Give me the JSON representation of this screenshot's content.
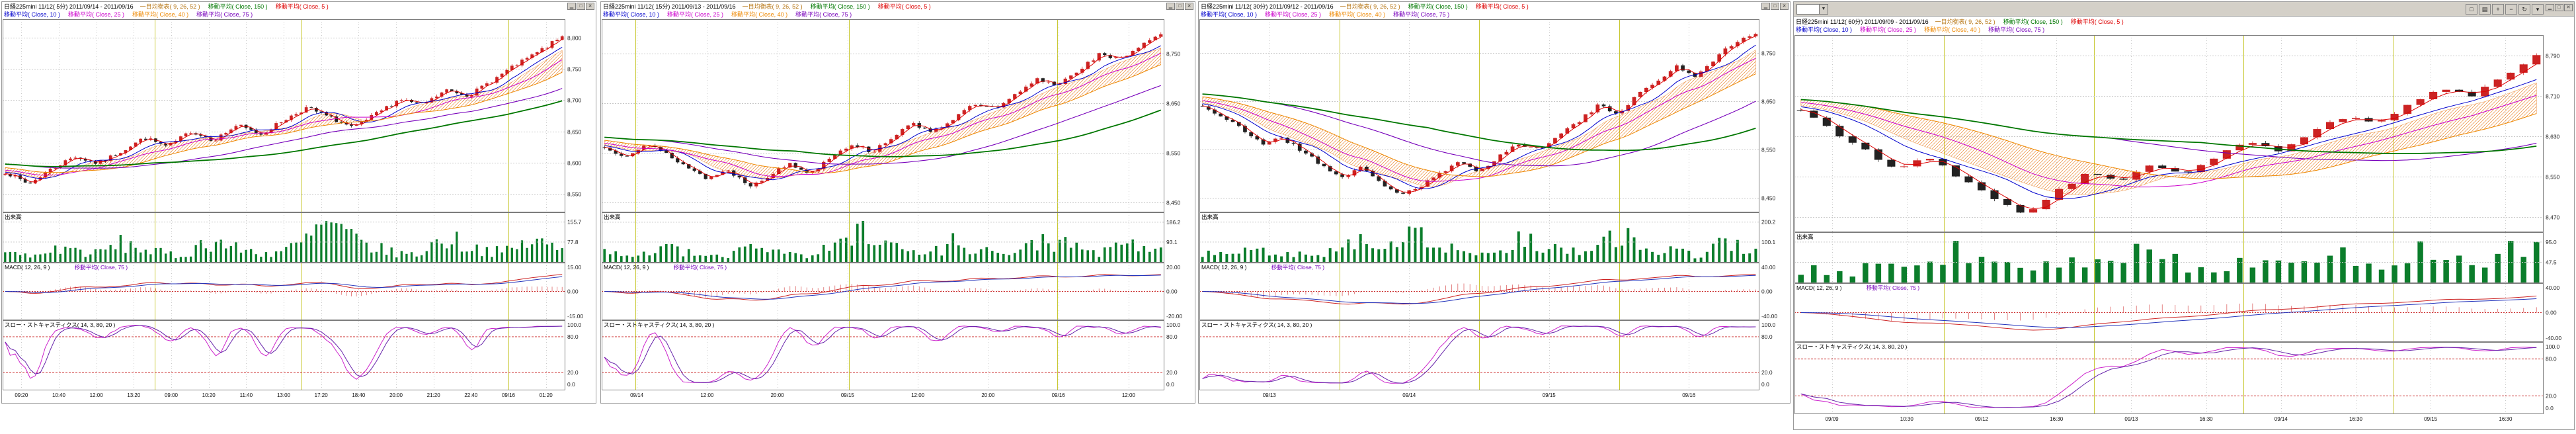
{
  "app": {
    "background": "#ffffff"
  },
  "colors": {
    "panel_chrome": "#d4d0c8",
    "candle_up": "#cc2222",
    "candle_down": "#222222",
    "volume_bar": "#0b7d2b",
    "grid": "#c9c9c9",
    "axis_text": "#222222",
    "border": "#7d7d7d",
    "cloud": "#e87818",
    "session": "#c8c832",
    "ma5": "#dd0000",
    "ma10": "#0000cc",
    "ma25": "#cc00cc",
    "ma40": "#ee8800",
    "ma75": "#7700bb",
    "ma150": "#007700",
    "macd_line": "#cc2222",
    "macd_signal": "#2233bb",
    "macd_hist": "#dd6666",
    "stoch_k": "#cc22cc",
    "stoch_d": "#6622aa",
    "guide": "#cc3333"
  },
  "window_controls": {
    "minimize": "▁",
    "maximize": "□",
    "close": "✕"
  },
  "panels": [
    {
      "title": "日経225mini 11/12( 5分)  2011/09/14 - 2011/09/16",
      "indicators_row1": [
        {
          "label": "一目均衡表( 9, 26, 52 )",
          "color": "#b87818"
        },
        {
          "label": "移動平均( Close, 150 )",
          "color": "#007700"
        },
        {
          "label": "移動平均( Close, 5 )",
          "color": "#dd0000"
        }
      ],
      "indicators_row2": [
        {
          "label": "移動平均( Close, 10 )",
          "color": "#0000cc"
        },
        {
          "label": "移動平均( Close, 25 )",
          "color": "#cc00cc"
        },
        {
          "label": "移動平均( Close, 40 )",
          "color": "#ee8800"
        },
        {
          "label": "移動平均( Close, 75 )",
          "color": "#7700bb"
        }
      ],
      "volume_label": "出来高",
      "macd_labels": [
        {
          "label": "MACD( 12, 26, 9 )",
          "color": "#000000"
        },
        {
          "label": "移動平均( Close, 75 )",
          "color": "#7700bb"
        }
      ],
      "stoch_label": "スロー・ストキャスティクス( 14, 3, 80, 20 )",
      "chart_data": {
        "type": "candlestick",
        "timeframe": "5分",
        "price_ticks": [
          {
            "label": "8,800",
            "value": 8800
          },
          {
            "label": "8,750",
            "value": 8750
          },
          {
            "label": "8,700",
            "value": 8700
          },
          {
            "label": "8,650",
            "value": 8650
          },
          {
            "label": "8,600",
            "value": 8600
          },
          {
            "label": "8,550",
            "value": 8550
          }
        ],
        "price_range": [
          8520,
          8830
        ],
        "volume_ticks": [
          {
            "label": "155.7",
            "value": 155.7
          },
          {
            "label": "77.8",
            "value": 77.8
          }
        ],
        "volume_max": 160,
        "macd_ticks": [
          "15.00",
          "0.00",
          "-15.00"
        ],
        "stoch_ticks": [
          {
            "label": "100.0",
            "value": 100
          },
          {
            "label": "80.0",
            "value": 80
          },
          {
            "label": "20.0",
            "value": 20
          },
          {
            "label": "0.0",
            "value": 0
          }
        ],
        "x_labels": [
          "09:20",
          "10:40",
          "12:00",
          "13:20",
          "09:00",
          "10:20",
          "11:40",
          "13:00",
          "17:20",
          "18:40",
          "20:00",
          "21:20",
          "22:40",
          "09/16",
          "01:20"
        ],
        "session_breaks": [
          0.27,
          0.53,
          0.9
        ],
        "candle_count": 112,
        "seed": 7,
        "pre_trend": 0.8,
        "close_anchors": [
          8585,
          8565,
          8590,
          8610,
          8598,
          8618,
          8640,
          8625,
          8650,
          8636,
          8660,
          8645,
          8668,
          8688,
          8672,
          8655,
          8678,
          8702,
          8692,
          8716,
          8708,
          8732,
          8756,
          8778,
          8802
        ],
        "volume_anchors": [
          38,
          22,
          58,
          30,
          72,
          42,
          20,
          88,
          48,
          32,
          62,
          148,
          78,
          42,
          26,
          96,
          56,
          36,
          82,
          48
        ]
      }
    },
    {
      "title": "日経225mini 11/12( 15分)  2011/09/13 - 2011/09/16",
      "indicators_row1": [
        {
          "label": "一目均衡表( 9, 26, 52 )",
          "color": "#b87818"
        },
        {
          "label": "移動平均( Close, 150 )",
          "color": "#007700"
        },
        {
          "label": "移動平均( Close, 5 )",
          "color": "#dd0000"
        }
      ],
      "indicators_row2": [
        {
          "label": "移動平均( Close, 10 )",
          "color": "#0000cc"
        },
        {
          "label": "移動平均( Close, 25 )",
          "color": "#cc00cc"
        },
        {
          "label": "移動平均( Close, 40 )",
          "color": "#ee8800"
        },
        {
          "label": "移動平均( Close, 75 )",
          "color": "#7700bb"
        }
      ],
      "volume_label": "出来高",
      "macd_labels": [
        {
          "label": "MACD( 12, 26, 9 )",
          "color": "#000000"
        },
        {
          "label": "移動平均( Close, 75 )",
          "color": "#7700bb"
        }
      ],
      "stoch_label": "スロー・ストキャスティクス( 14, 3, 80, 20 )",
      "chart_data": {
        "type": "candlestick",
        "timeframe": "15分",
        "price_ticks": [
          {
            "label": "8,750",
            "value": 8750
          },
          {
            "label": "8,650",
            "value": 8650
          },
          {
            "label": "8,550",
            "value": 8550
          },
          {
            "label": "8,450",
            "value": 8450
          }
        ],
        "price_range": [
          8430,
          8820
        ],
        "volume_ticks": [
          {
            "label": "186.2",
            "value": 186.2
          },
          {
            "label": "93.1",
            "value": 93.1
          }
        ],
        "volume_max": 192,
        "macd_ticks": [
          "20.00",
          "0.00",
          "-20.00"
        ],
        "stoch_ticks": [
          {
            "label": "100.0",
            "value": 100
          },
          {
            "label": "80.0",
            "value": 80
          },
          {
            "label": "20.0",
            "value": 20
          },
          {
            "label": "0.0",
            "value": 0
          }
        ],
        "x_labels": [
          "09/14",
          "12:00",
          "20:00",
          "09/15",
          "12:00",
          "20:00",
          "09/16",
          "12:00"
        ],
        "session_breaks": [
          0.06,
          0.44,
          0.81
        ],
        "candle_count": 100,
        "seed": 13,
        "pre_trend": 1.2,
        "close_anchors": [
          8560,
          8545,
          8568,
          8548,
          8522,
          8498,
          8516,
          8484,
          8505,
          8528,
          8508,
          8545,
          8568,
          8552,
          8584,
          8608,
          8594,
          8622,
          8648,
          8638,
          8668,
          8698,
          8688,
          8718,
          8748,
          8738,
          8768,
          8792
        ],
        "volume_anchors": [
          42,
          26,
          66,
          36,
          20,
          92,
          52,
          32,
          76,
          178,
          62,
          36,
          96,
          56,
          32,
          112,
          66,
          42,
          86,
          52
        ]
      }
    },
    {
      "title": "日経225mini 11/12( 30分)  2011/09/12 - 2011/09/16",
      "indicators_row1": [
        {
          "label": "一目均衡表( 9, 26, 52 )",
          "color": "#b87818"
        },
        {
          "label": "移動平均( Close, 150 )",
          "color": "#007700"
        },
        {
          "label": "移動平均( Close, 5 )",
          "color": "#dd0000"
        }
      ],
      "indicators_row2": [
        {
          "label": "移動平均( Close, 10 )",
          "color": "#0000cc"
        },
        {
          "label": "移動平均( Close, 25 )",
          "color": "#cc00cc"
        },
        {
          "label": "移動平均( Close, 40 )",
          "color": "#ee8800"
        },
        {
          "label": "移動平均( Close, 75 )",
          "color": "#7700bb"
        }
      ],
      "volume_label": "出来高",
      "macd_labels": [
        {
          "label": "MACD( 12, 26, 9 )",
          "color": "#000000"
        },
        {
          "label": "移動平均( Close, 75 )",
          "color": "#7700bb"
        }
      ],
      "stoch_label": "スロー・ストキャスティクス( 14, 3, 80, 20 )",
      "chart_data": {
        "type": "candlestick",
        "timeframe": "30分",
        "price_ticks": [
          {
            "label": "8,750",
            "value": 8750
          },
          {
            "label": "8,650",
            "value": 8650
          },
          {
            "label": "8,550",
            "value": 8550
          },
          {
            "label": "8,450",
            "value": 8450
          }
        ],
        "price_range": [
          8420,
          8820
        ],
        "volume_ticks": [
          {
            "label": "200.2",
            "value": 200.2
          },
          {
            "label": "100.1",
            "value": 100.1
          }
        ],
        "volume_max": 206,
        "macd_ticks": [
          "40.00",
          "0.00",
          "-40.00"
        ],
        "stoch_ticks": [
          {
            "label": "100.0",
            "value": 100
          },
          {
            "label": "80.0",
            "value": 80
          },
          {
            "label": "20.0",
            "value": 20
          },
          {
            "label": "0.0",
            "value": 0
          }
        ],
        "x_labels": [
          "09/13",
          "09/14",
          "09/15",
          "09/16"
        ],
        "session_breaks": [
          0.25,
          0.5,
          0.75
        ],
        "candle_count": 92,
        "seed": 21,
        "pre_trend": 1.6,
        "close_anchors": [
          8640,
          8618,
          8592,
          8562,
          8576,
          8548,
          8520,
          8492,
          8512,
          8482,
          8458,
          8472,
          8500,
          8522,
          8506,
          8536,
          8562,
          8550,
          8582,
          8606,
          8640,
          8626,
          8662,
          8692,
          8722,
          8702,
          8742,
          8772,
          8792
        ],
        "volume_anchors": [
          52,
          32,
          82,
          46,
          26,
          112,
          62,
          196,
          86,
          52,
          36,
          122,
          72,
          46,
          152,
          92,
          56,
          36,
          102,
          62
        ]
      }
    },
    {
      "title": "日経225mini 11/12( 60分)  2011/09/09 - 2011/09/16",
      "indicators_row1": [
        {
          "label": "一目均衡表( 9, 26, 52 )",
          "color": "#b87818"
        },
        {
          "label": "移動平均( Close, 150 )",
          "color": "#007700"
        },
        {
          "label": "移動平均( Close, 5 )",
          "color": "#dd0000"
        }
      ],
      "indicators_row2": [
        {
          "label": "移動平均( Close, 10 )",
          "color": "#0000cc"
        },
        {
          "label": "移動平均( Close, 25 )",
          "color": "#cc00cc"
        },
        {
          "label": "移動平均( Close, 40 )",
          "color": "#ee8800"
        },
        {
          "label": "移動平均( Close, 75 )",
          "color": "#7700bb"
        }
      ],
      "volume_label": "出来高",
      "macd_labels": [
        {
          "label": "MACD( 12, 26, 9 )",
          "color": "#000000"
        },
        {
          "label": "移動平均( Close, 75 )",
          "color": "#7700bb"
        }
      ],
      "stoch_label": "スロー・ストキャスティクス( 14, 3, 80, 20 )",
      "toolbar": {
        "buttons": [
          {
            "glyph": "□",
            "name": "window-tile-button"
          },
          {
            "glyph": "▤",
            "name": "list-view-button"
          },
          {
            "glyph": "+",
            "name": "zoom-in-button"
          },
          {
            "glyph": "−",
            "name": "zoom-out-button"
          },
          {
            "glyph": "↻",
            "name": "refresh-button"
          },
          {
            "glyph": "▾",
            "name": "period-dropdown-button"
          }
        ]
      },
      "chart_data": {
        "type": "candlestick",
        "timeframe": "60分",
        "price_ticks": [
          {
            "label": "8,790",
            "value": 8790
          },
          {
            "label": "8,710",
            "value": 8710
          },
          {
            "label": "8,630",
            "value": 8630
          },
          {
            "label": "8,550",
            "value": 8550
          },
          {
            "label": "8,470",
            "value": 8470
          }
        ],
        "price_range": [
          8440,
          8830
        ],
        "volume_ticks": [
          {
            "label": "95.0",
            "value": 95
          },
          {
            "label": "47.5",
            "value": 47.5
          }
        ],
        "volume_max": 98,
        "macd_ticks": [
          "40.00",
          "0.00",
          "-40.00"
        ],
        "stoch_ticks": [
          {
            "label": "100.0",
            "value": 100
          },
          {
            "label": "80.0",
            "value": 80
          },
          {
            "label": "20.0",
            "value": 20
          },
          {
            "label": "0.0",
            "value": 0
          }
        ],
        "x_labels": [
          "09/09",
          "10:30",
          "09/12",
          "16:30",
          "09/13",
          "16:30",
          "09/14",
          "16:30",
          "09/15",
          "16:30"
        ],
        "session_breaks": [
          0.2,
          0.4,
          0.6,
          0.8
        ],
        "candle_count": 58,
        "seed": 33,
        "pre_trend": 2.2,
        "close_anchors": [
          8680,
          8642,
          8602,
          8562,
          8588,
          8546,
          8506,
          8478,
          8520,
          8558,
          8540,
          8574,
          8552,
          8590,
          8618,
          8602,
          8640,
          8668,
          8652,
          8690,
          8728,
          8712,
          8750,
          8788
        ],
        "volume_anchors": [
          32,
          20,
          52,
          30,
          88,
          46,
          26,
          62,
          36,
          82,
          42,
          24,
          72,
          40,
          56,
          32,
          86,
          50,
          66,
          94
        ]
      }
    }
  ]
}
